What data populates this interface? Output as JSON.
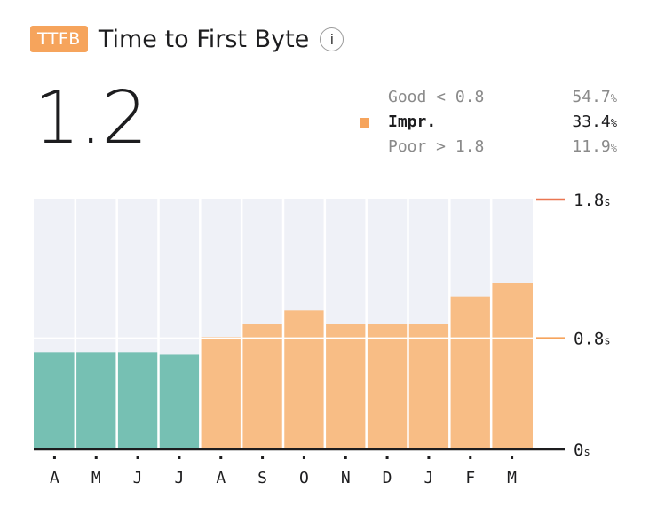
{
  "header": {
    "badge": "TTFB",
    "title": "Time to First Byte",
    "info_glyph": "i",
    "info_icon": "info-icon"
  },
  "summary": {
    "value": "1.2"
  },
  "legend": [
    {
      "label": "Good < 0.8",
      "percent": "54.7",
      "unit": "%",
      "active": false,
      "color": ""
    },
    {
      "label": "Impr.",
      "percent": "33.4",
      "unit": "%",
      "active": true,
      "color": "#f6a45c"
    },
    {
      "label": "Poor > 1.8",
      "percent": "11.9",
      "unit": "%",
      "active": false,
      "color": ""
    }
  ],
  "colors": {
    "good": "#76c0b3",
    "improvement": "#f8bd85",
    "background": "#eff1f7",
    "poor_line": "#ea7651",
    "needs_line": "#f6a45c",
    "baseline": "#1d1d1f",
    "badge": "#f6a45c"
  },
  "chart_data": {
    "type": "bar",
    "categories": [
      "A",
      "M",
      "J",
      "J",
      "A",
      "S",
      "O",
      "N",
      "D",
      "J",
      "F",
      "M"
    ],
    "values": [
      0.7,
      0.7,
      0.7,
      0.68,
      0.81,
      0.9,
      1.0,
      0.9,
      0.9,
      0.9,
      1.1,
      1.2
    ],
    "ylim": [
      0,
      1.8
    ],
    "thresholds": [
      {
        "value": 0,
        "label": "0",
        "unit": "s"
      },
      {
        "value": 0.8,
        "label": "0.8",
        "unit": "s"
      },
      {
        "value": 1.8,
        "label": "1.8",
        "unit": "s"
      }
    ],
    "good_threshold": 0.8
  }
}
